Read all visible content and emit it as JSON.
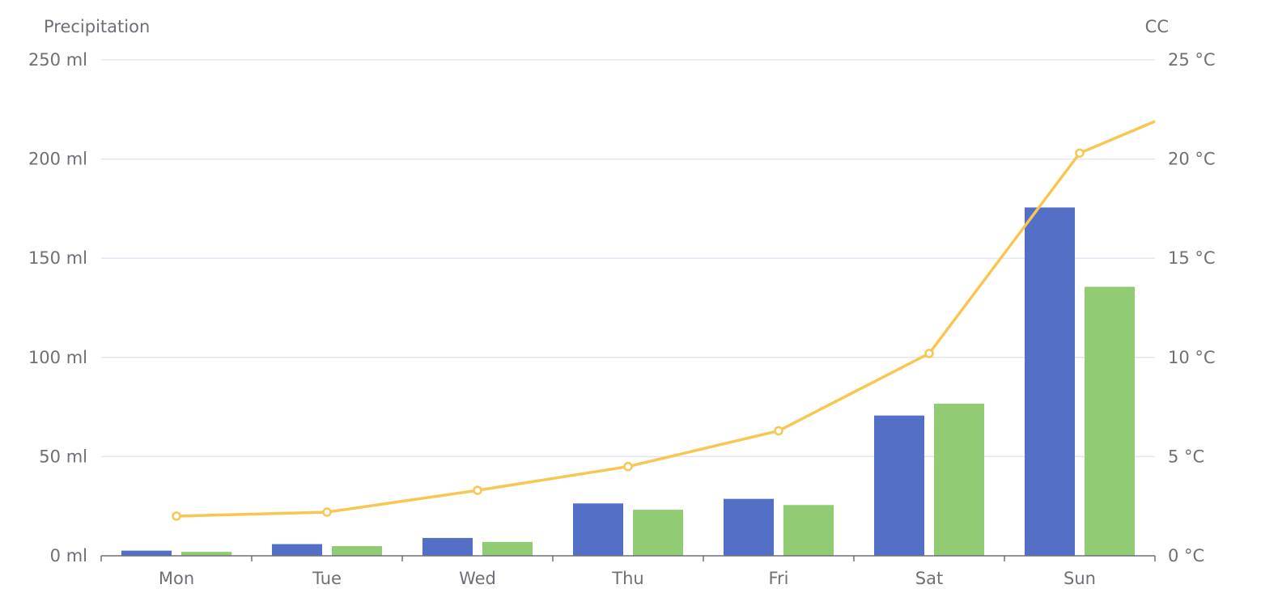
{
  "chart_data": {
    "type": "bar",
    "categories": [
      "Mon",
      "Tue",
      "Wed",
      "Thu",
      "Fri",
      "Sat",
      "Sun"
    ],
    "left_axis": {
      "name": "Precipitation",
      "min": 0,
      "max": 250,
      "ticks": [
        "0 ml",
        "50 ml",
        "100 ml",
        "150 ml",
        "200 ml",
        "250 ml"
      ],
      "tick_values": [
        0,
        50,
        100,
        150,
        200,
        250
      ]
    },
    "right_axis": {
      "name": "CC",
      "min": 0,
      "max": 25,
      "ticks": [
        "0 °C",
        "5 °C",
        "10 °C",
        "15 °C",
        "20 °C",
        "25 °C"
      ],
      "tick_values": [
        0,
        5,
        10,
        15,
        20,
        25
      ]
    },
    "series": [
      {
        "type": "bar",
        "axis": "left",
        "color": "#5470c6",
        "values": [
          2.6,
          5.9,
          9.0,
          26.4,
          28.7,
          70.7,
          175.6
        ]
      },
      {
        "type": "bar",
        "axis": "left",
        "color": "#91cc75",
        "values": [
          2.0,
          4.9,
          7.0,
          23.2,
          25.6,
          76.7,
          135.6
        ]
      },
      {
        "type": "line",
        "axis": "right",
        "color": "#f7c752",
        "values": [
          2.0,
          2.2,
          3.3,
          4.5,
          6.3,
          10.2,
          20.3
        ],
        "trailing_value": 21.9
      }
    ],
    "grid": true,
    "legend": "none"
  }
}
